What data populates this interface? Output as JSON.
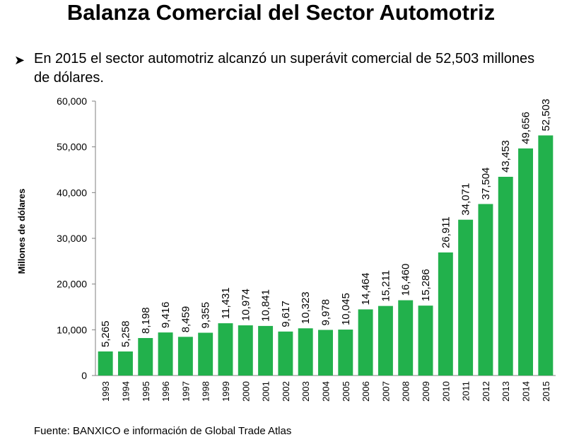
{
  "title": "Balanza Comercial del Sector Automotriz",
  "bullet": {
    "icon": "arrow-bullet-icon",
    "text": "En 2015 el sector automotriz alcanzó un superávit comercial de 52,503 millones de dólares."
  },
  "source": "Fuente: BANXICO e información de Global Trade Atlas",
  "chart_data": {
    "type": "bar",
    "title": "",
    "xlabel": "",
    "ylabel": "Millones de dólares",
    "ylim": [
      0,
      60000
    ],
    "y_ticks": [
      0,
      10000,
      20000,
      30000,
      40000,
      50000,
      60000
    ],
    "y_tick_labels": [
      "0",
      "10,000",
      "20,000",
      "30,000",
      "40,000",
      "50,000",
      "60,000"
    ],
    "grid": false,
    "bar_color": "#22B14C",
    "categories": [
      "1993",
      "1994",
      "1995",
      "1996",
      "1997",
      "1998",
      "1999",
      "2000",
      "2001",
      "2002",
      "2003",
      "2004",
      "2005",
      "2006",
      "2007",
      "2008",
      "2009",
      "2010",
      "2011",
      "2012",
      "2013",
      "2014",
      "2015"
    ],
    "values": [
      5265,
      5258,
      8198,
      9416,
      8459,
      9355,
      11431,
      10974,
      10841,
      9617,
      10323,
      9978,
      10045,
      14464,
      15211,
      16460,
      15286,
      26911,
      34071,
      37504,
      43453,
      49656,
      52503
    ],
    "value_labels": [
      "5,265",
      "5,258",
      "8,198",
      "9,416",
      "8,459",
      "9,355",
      "11,431",
      "10,974",
      "10,841",
      "9,617",
      "10,323",
      "9,978",
      "10,045",
      "14,464",
      "15,211",
      "16,460",
      "15,286",
      "26,911",
      "34,071",
      "37,504",
      "43,453",
      "49,656",
      "52,503"
    ]
  }
}
